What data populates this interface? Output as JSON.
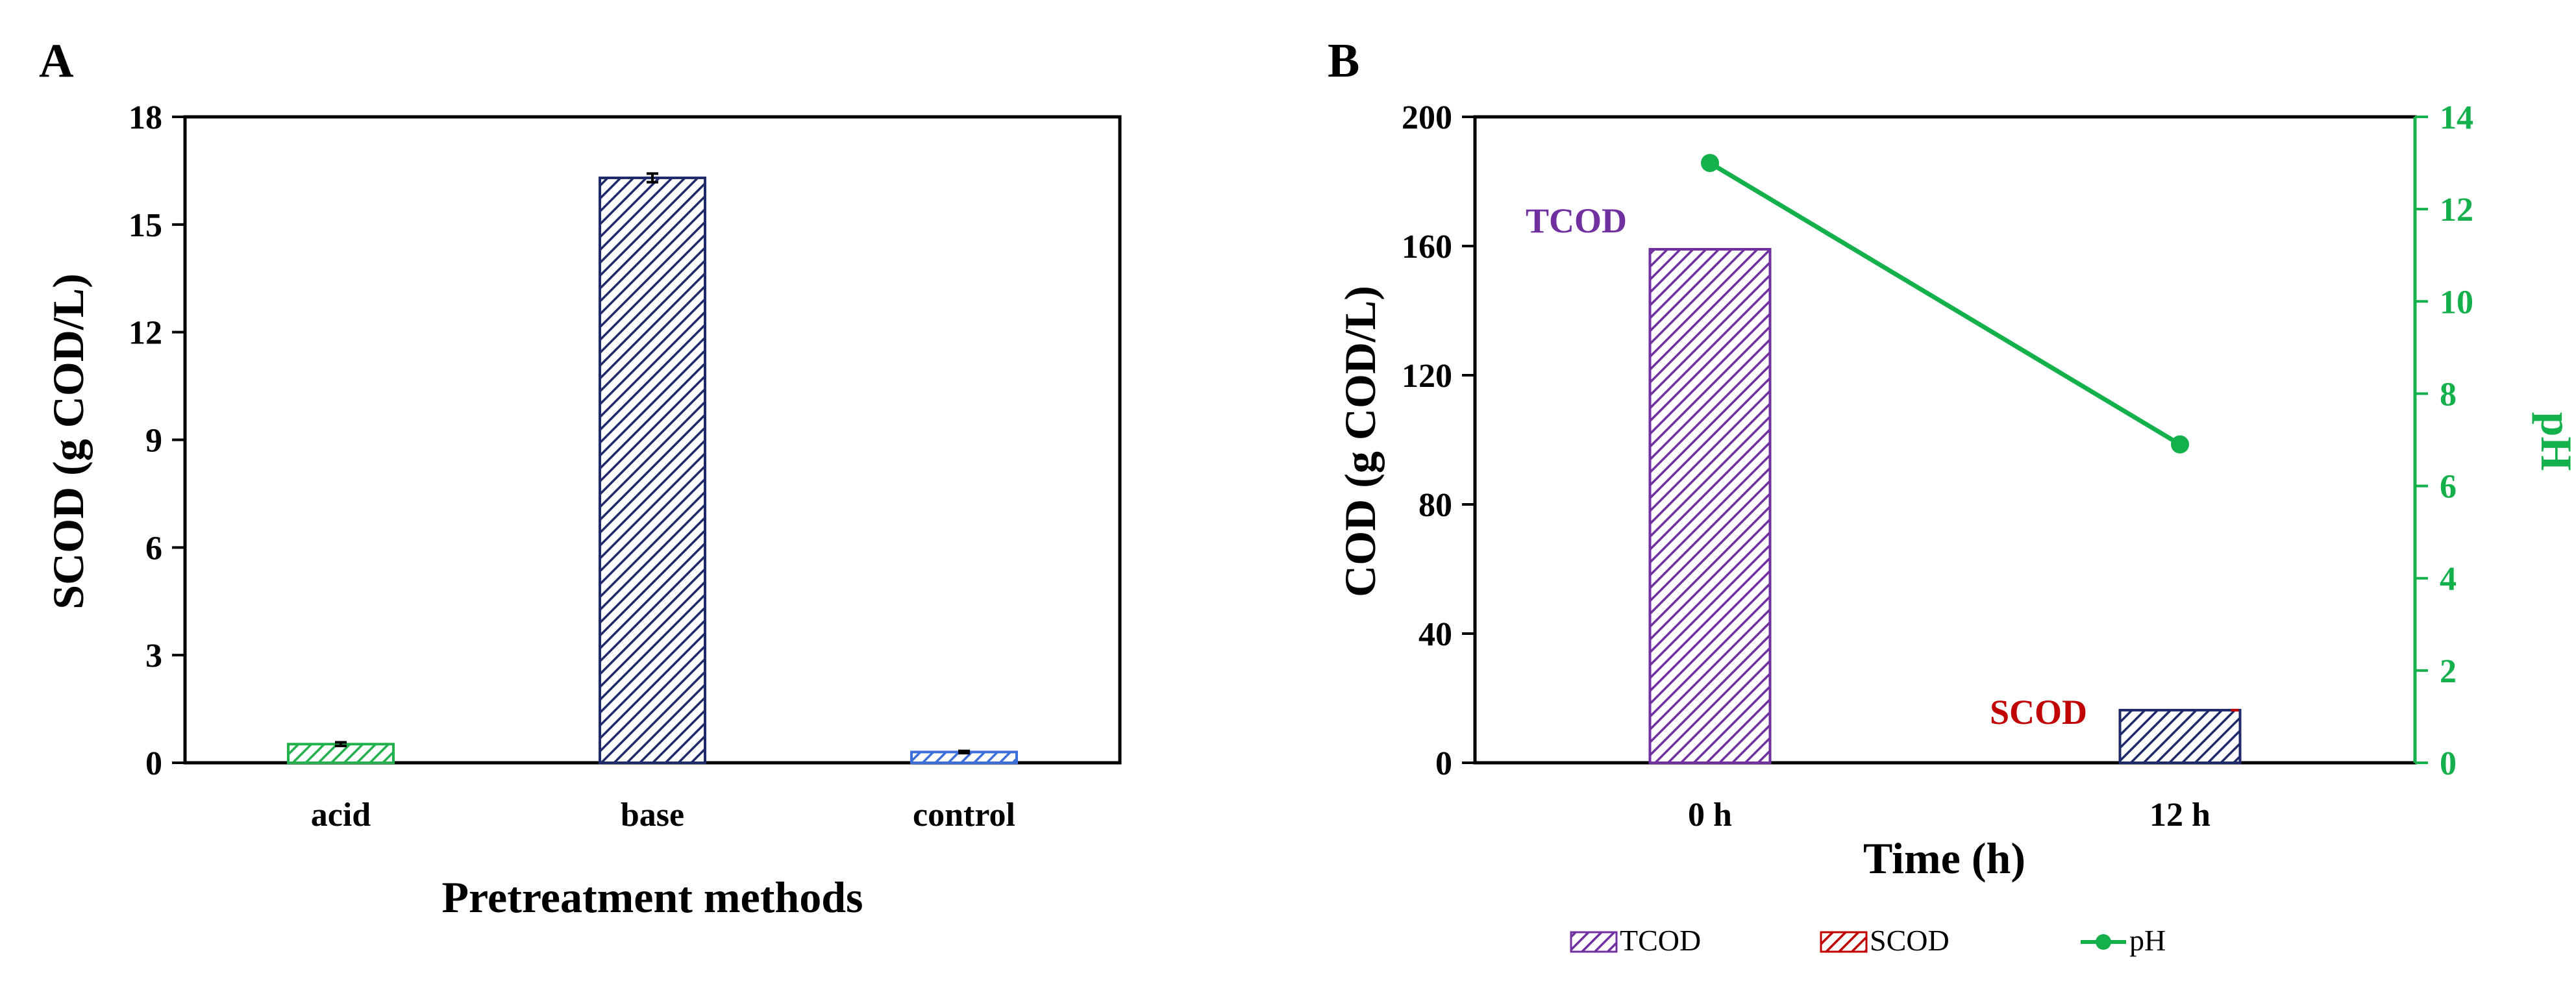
{
  "chart_data": [
    {
      "panel": "A",
      "type": "bar",
      "title": "",
      "xlabel": "Pretreatment methods",
      "ylabel": "SCOD (g COD/L)",
      "ylim": [
        0,
        18
      ],
      "yticks": [
        "0",
        "3",
        "6",
        "9",
        "12",
        "15",
        "18"
      ],
      "categories": [
        "acid",
        "base",
        "control"
      ],
      "values": [
        0.52,
        16.3,
        0.3
      ],
      "errors": [
        0.05,
        0.12,
        0.03
      ],
      "colors": [
        "#22b14c",
        "#1f2a6b",
        "#3c6fd9"
      ]
    },
    {
      "panel": "B",
      "type": "bar+line",
      "xlabel": "Time (h)",
      "ylabel": "COD (g COD/L)",
      "y2label": "pH",
      "ylim": [
        0,
        200
      ],
      "y2lim": [
        0,
        14
      ],
      "yticks": [
        "0",
        "40",
        "80",
        "120",
        "160",
        "200"
      ],
      "y2ticks": [
        "0",
        "2",
        "4",
        "6",
        "8",
        "10",
        "12",
        "14"
      ],
      "categories": [
        "0 h",
        "12 h"
      ],
      "series": [
        {
          "name": "TCOD",
          "type": "bar",
          "values": [
            159,
            null
          ],
          "color": "#7030a0"
        },
        {
          "name": "SCOD",
          "type": "bar",
          "values": [
            null,
            16.3
          ],
          "color": "#c00000"
        },
        {
          "name": "pH",
          "type": "line",
          "axis": "right",
          "values": [
            13.0,
            6.9
          ],
          "color": "#14b04c"
        }
      ],
      "annotations": [
        {
          "text": "TCOD",
          "color": "#7030a0"
        },
        {
          "text": "SCOD",
          "color": "#c00000"
        }
      ],
      "legend": [
        "TCOD",
        "SCOD",
        "pH"
      ]
    }
  ]
}
